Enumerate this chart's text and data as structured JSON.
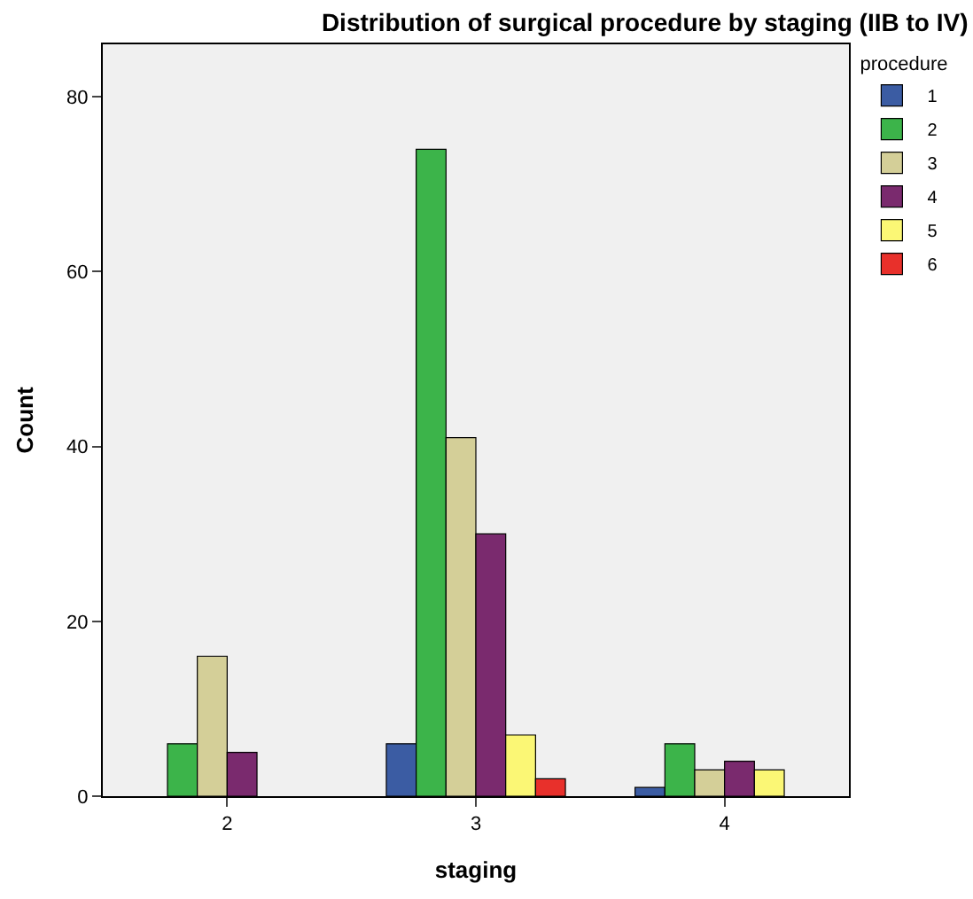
{
  "chart_data": {
    "type": "bar",
    "title": "Distribution of surgical procedure by staging (IIB to IV)",
    "xlabel": "staging",
    "ylabel": "Count",
    "legend_title": "procedure",
    "categories": [
      "2",
      "3",
      "4"
    ],
    "series": [
      {
        "name": "1",
        "color": "#3b5ca3",
        "values": [
          null,
          6,
          1
        ]
      },
      {
        "name": "2",
        "color": "#3cb44a",
        "values": [
          6,
          74,
          6
        ]
      },
      {
        "name": "3",
        "color": "#d4cf98",
        "values": [
          16,
          41,
          3
        ]
      },
      {
        "name": "4",
        "color": "#7a2a6e",
        "values": [
          5,
          30,
          4
        ]
      },
      {
        "name": "5",
        "color": "#fbf775",
        "values": [
          null,
          7,
          3
        ]
      },
      {
        "name": "6",
        "color": "#e8302b",
        "values": [
          null,
          2,
          null
        ]
      }
    ],
    "ylim": [
      0,
      86
    ],
    "yticks": [
      0,
      20,
      40,
      60,
      80
    ],
    "grid": false,
    "legend": "top right"
  }
}
